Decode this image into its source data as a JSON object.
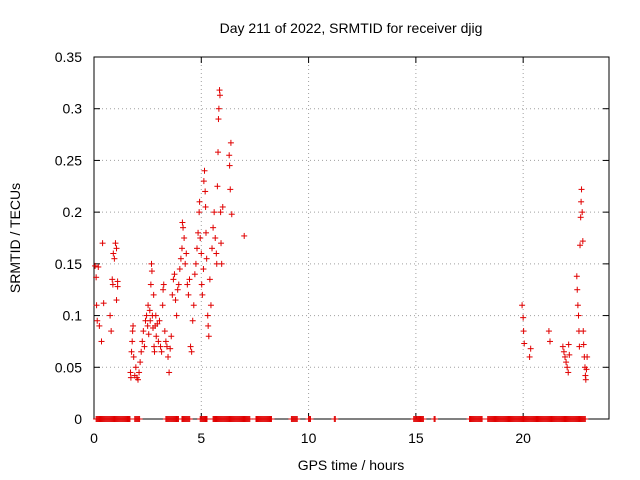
{
  "chart_data": {
    "type": "scatter",
    "title": "Day 211 of 2022, SRMTID for receiver djig",
    "xlabel": "GPS time / hours",
    "ylabel": "SRMTID / TECUs",
    "xlim": [
      0,
      24
    ],
    "ylim": [
      0,
      0.35
    ],
    "x_ticks": [
      "0",
      "5",
      "10",
      "15",
      "20"
    ],
    "y_ticks": [
      "0",
      "0.05",
      "0.1",
      "0.15",
      "0.2",
      "0.25",
      "0.3",
      "0.35"
    ],
    "grid": true,
    "marker": "+",
    "color": "#e00000",
    "series": [
      {
        "values_xy": [
          [
            0.05,
            0.148
          ],
          [
            0.1,
            0.137
          ],
          [
            0.12,
            0.11
          ],
          [
            0.15,
            0.095
          ],
          [
            0.2,
            0.147
          ],
          [
            0.25,
            0.09
          ],
          [
            0.35,
            0.075
          ],
          [
            0.4,
            0.17
          ],
          [
            0.45,
            0.112
          ],
          [
            0.75,
            0.1
          ],
          [
            0.8,
            0.085
          ],
          [
            0.85,
            0.135
          ],
          [
            0.88,
            0.13
          ],
          [
            0.9,
            0.16
          ],
          [
            0.95,
            0.155
          ],
          [
            1.0,
            0.17
          ],
          [
            1.05,
            0.165
          ],
          [
            1.05,
            0.115
          ],
          [
            1.1,
            0.133
          ],
          [
            1.1,
            0.128
          ],
          [
            1.7,
            0.045
          ],
          [
            1.72,
            0.04
          ],
          [
            1.75,
            0.065
          ],
          [
            1.78,
            0.075
          ],
          [
            1.8,
            0.085
          ],
          [
            1.82,
            0.09
          ],
          [
            1.85,
            0.06
          ],
          [
            1.9,
            0.042
          ],
          [
            1.95,
            0.05
          ],
          [
            2.0,
            0.04
          ],
          [
            2.05,
            0.038
          ],
          [
            2.1,
            0.045
          ],
          [
            2.15,
            0.055
          ],
          [
            2.2,
            0.065
          ],
          [
            2.25,
            0.075
          ],
          [
            2.3,
            0.085
          ],
          [
            2.35,
            0.07
          ],
          [
            2.4,
            0.095
          ],
          [
            2.45,
            0.1
          ],
          [
            2.5,
            0.09
          ],
          [
            2.52,
            0.11
          ],
          [
            2.55,
            0.082
          ],
          [
            2.6,
            0.105
          ],
          [
            2.62,
            0.095
          ],
          [
            2.65,
            0.13
          ],
          [
            2.68,
            0.15
          ],
          [
            2.7,
            0.143
          ],
          [
            2.72,
            0.1
          ],
          [
            2.75,
            0.088
          ],
          [
            2.78,
            0.12
          ],
          [
            2.8,
            0.07
          ],
          [
            2.82,
            0.065
          ],
          [
            2.85,
            0.09
          ],
          [
            2.88,
            0.1
          ],
          [
            2.9,
            0.08
          ],
          [
            2.95,
            0.092
          ],
          [
            3.0,
            0.075
          ],
          [
            3.05,
            0.095
          ],
          [
            3.1,
            0.07
          ],
          [
            3.15,
            0.065
          ],
          [
            3.2,
            0.11
          ],
          [
            3.22,
            0.125
          ],
          [
            3.25,
            0.13
          ],
          [
            3.3,
            0.085
          ],
          [
            3.35,
            0.075
          ],
          [
            3.4,
            0.07
          ],
          [
            3.45,
            0.06
          ],
          [
            3.5,
            0.045
          ],
          [
            3.55,
            0.068
          ],
          [
            3.6,
            0.08
          ],
          [
            3.65,
            0.12
          ],
          [
            3.7,
            0.135
          ],
          [
            3.75,
            0.14
          ],
          [
            3.8,
            0.115
          ],
          [
            3.85,
            0.1
          ],
          [
            3.9,
            0.125
          ],
          [
            3.95,
            0.13
          ],
          [
            4.0,
            0.145
          ],
          [
            4.05,
            0.155
          ],
          [
            4.1,
            0.165
          ],
          [
            4.12,
            0.19
          ],
          [
            4.15,
            0.185
          ],
          [
            4.2,
            0.175
          ],
          [
            4.25,
            0.15
          ],
          [
            4.3,
            0.16
          ],
          [
            4.35,
            0.13
          ],
          [
            4.4,
            0.12
          ],
          [
            4.45,
            0.135
          ],
          [
            4.5,
            0.07
          ],
          [
            4.55,
            0.065
          ],
          [
            4.6,
            0.095
          ],
          [
            4.65,
            0.11
          ],
          [
            4.7,
            0.14
          ],
          [
            4.75,
            0.15
          ],
          [
            4.8,
            0.165
          ],
          [
            4.85,
            0.18
          ],
          [
            4.9,
            0.2
          ],
          [
            4.92,
            0.21
          ],
          [
            4.95,
            0.175
          ],
          [
            5.0,
            0.16
          ],
          [
            5.02,
            0.13
          ],
          [
            5.05,
            0.12
          ],
          [
            5.1,
            0.145
          ],
          [
            5.12,
            0.23
          ],
          [
            5.15,
            0.24
          ],
          [
            5.18,
            0.22
          ],
          [
            5.2,
            0.205
          ],
          [
            5.22,
            0.18
          ],
          [
            5.25,
            0.155
          ],
          [
            5.3,
            0.1
          ],
          [
            5.32,
            0.09
          ],
          [
            5.35,
            0.08
          ],
          [
            5.4,
            0.135
          ],
          [
            5.45,
            0.11
          ],
          [
            5.5,
            0.165
          ],
          [
            5.55,
            0.185
          ],
          [
            5.6,
            0.2
          ],
          [
            5.65,
            0.175
          ],
          [
            5.7,
            0.16
          ],
          [
            5.72,
            0.15
          ],
          [
            5.75,
            0.225
          ],
          [
            5.78,
            0.258
          ],
          [
            5.8,
            0.29
          ],
          [
            5.82,
            0.3
          ],
          [
            5.85,
            0.318
          ],
          [
            5.87,
            0.313
          ],
          [
            5.9,
            0.2
          ],
          [
            5.92,
            0.17
          ],
          [
            5.95,
            0.15
          ],
          [
            6.0,
            0.205
          ],
          [
            6.3,
            0.255
          ],
          [
            6.32,
            0.245
          ],
          [
            6.35,
            0.222
          ],
          [
            6.38,
            0.267
          ],
          [
            6.42,
            0.198
          ],
          [
            7.0,
            0.177
          ],
          [
            19.95,
            0.11
          ],
          [
            20.0,
            0.098
          ],
          [
            20.02,
            0.085
          ],
          [
            20.05,
            0.073
          ],
          [
            20.3,
            0.06
          ],
          [
            20.35,
            0.068
          ],
          [
            21.2,
            0.085
          ],
          [
            21.25,
            0.075
          ],
          [
            21.85,
            0.07
          ],
          [
            21.9,
            0.065
          ],
          [
            21.95,
            0.06
          ],
          [
            22.0,
            0.055
          ],
          [
            22.05,
            0.05
          ],
          [
            22.1,
            0.045
          ],
          [
            22.12,
            0.072
          ],
          [
            22.15,
            0.062
          ],
          [
            22.5,
            0.138
          ],
          [
            22.52,
            0.125
          ],
          [
            22.55,
            0.11
          ],
          [
            22.58,
            0.1
          ],
          [
            22.6,
            0.085
          ],
          [
            22.62,
            0.07
          ],
          [
            22.65,
            0.168
          ],
          [
            22.68,
            0.195
          ],
          [
            22.7,
            0.21
          ],
          [
            22.72,
            0.222
          ],
          [
            22.75,
            0.2
          ],
          [
            22.78,
            0.172
          ],
          [
            22.8,
            0.085
          ],
          [
            22.82,
            0.072
          ],
          [
            22.85,
            0.06
          ],
          [
            22.88,
            0.05
          ],
          [
            22.9,
            0.042
          ],
          [
            22.92,
            0.038
          ],
          [
            22.95,
            0.048
          ],
          [
            22.98,
            0.06
          ]
        ],
        "zero_ranges": [
          [
            0.1,
            1.7
          ],
          [
            1.9,
            2.15
          ],
          [
            3.35,
            3.95
          ],
          [
            4.1,
            4.5
          ],
          [
            4.95,
            5.3
          ],
          [
            5.55,
            7.3
          ],
          [
            7.55,
            8.3
          ],
          [
            9.2,
            9.5
          ],
          [
            10.0,
            10.1
          ],
          [
            11.2,
            11.25
          ],
          [
            14.9,
            15.35
          ],
          [
            15.85,
            15.9
          ],
          [
            17.5,
            18.1
          ],
          [
            18.35,
            22.9
          ]
        ]
      }
    ]
  }
}
